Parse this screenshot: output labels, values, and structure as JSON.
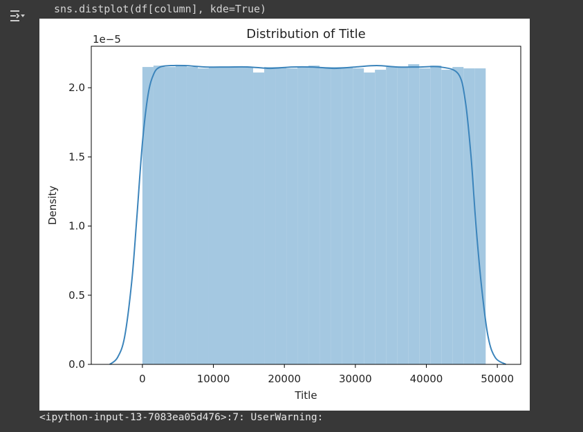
{
  "cell": {
    "code": "sns.distplot(df[column], kde=True)",
    "output_toggle_icon": "output-collapse-icon",
    "warning": "<ipython-input-13-7083ea05d476>:7: UserWarning:"
  },
  "chart_data": {
    "type": "bar",
    "title": "Distribution of Title",
    "xlabel": "Title",
    "ylabel": "Density",
    "y_offset_label": "1e−5",
    "xlim": [
      -7200,
      53300
    ],
    "ylim": [
      0,
      2.3
    ],
    "xticks": [
      0,
      10000,
      20000,
      30000,
      40000,
      50000
    ],
    "xtick_labels": [
      "0",
      "10000",
      "20000",
      "30000",
      "40000",
      "50000"
    ],
    "yticks": [
      0.0,
      0.5,
      1.0,
      1.5,
      2.0
    ],
    "ytick_labels": [
      "0.0",
      "0.5",
      "1.0",
      "1.5",
      "2.0"
    ],
    "grid": false,
    "bar_color": "#a4c8e1",
    "line_color": "#3b84bb",
    "histogram": {
      "x_start": 0,
      "bin_width": 1560,
      "values": [
        2.15,
        2.16,
        2.15,
        2.16,
        2.15,
        2.14,
        2.15,
        2.15,
        2.15,
        2.15,
        2.11,
        2.15,
        2.15,
        2.14,
        2.15,
        2.16,
        2.15,
        2.15,
        2.15,
        2.14,
        2.11,
        2.13,
        2.15,
        2.15,
        2.17,
        2.14,
        2.16,
        2.13,
        2.15,
        2.14,
        2.14
      ]
    },
    "kde": {
      "x": [
        -4600,
        -3500,
        -2500,
        -1500,
        -800,
        0,
        800,
        1600,
        2500,
        4000,
        6000,
        9000,
        12000,
        15000,
        18000,
        21000,
        24000,
        27000,
        30000,
        33000,
        36000,
        39000,
        42000,
        44500,
        45500,
        46300,
        47000,
        47800,
        48700,
        49700,
        51200
      ],
      "y": [
        0.0,
        0.05,
        0.2,
        0.6,
        1.05,
        1.6,
        1.95,
        2.1,
        2.15,
        2.16,
        2.16,
        2.15,
        2.15,
        2.15,
        2.14,
        2.15,
        2.15,
        2.14,
        2.15,
        2.16,
        2.15,
        2.15,
        2.15,
        2.1,
        1.9,
        1.5,
        1.0,
        0.55,
        0.2,
        0.05,
        0.0
      ]
    }
  }
}
